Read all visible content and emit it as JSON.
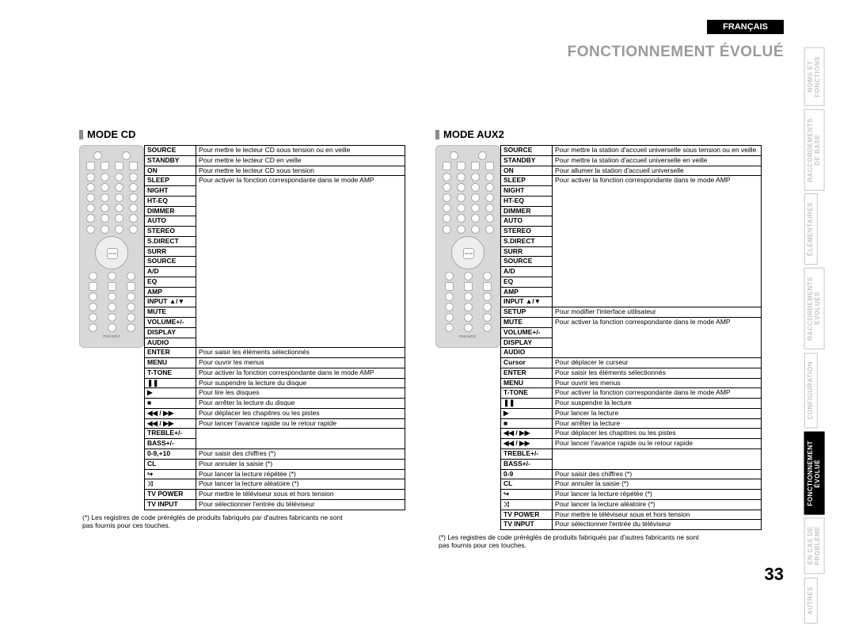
{
  "lang_tab": "FRANÇAIS",
  "breadcrumb": "FONCTIONNEMENT ÉVOLUÉ",
  "page_number": "33",
  "footnote": "(*) Les registres de code préréglés de produits fabriqués par d'autres fabricants ne sont pas fournis pour ces touches.",
  "remote_brand": "marantz",
  "sidetabs": [
    {
      "label": "NOMS ET\nFONCTIONS",
      "active": false
    },
    {
      "label": "RACCORDEMENTS\nDE BASE",
      "active": false
    },
    {
      "label": "ÉLÉMENTAIRES",
      "active": false
    },
    {
      "label": "RACCORDEMENTS\nÉVOLUÉS",
      "active": false
    },
    {
      "label": "CONFIGURATION",
      "active": false
    },
    {
      "label": "FONCTIONNEMENT\nÉVOLUÉ",
      "active": true
    },
    {
      "label": "EN CAS DE\nPROBLÈME",
      "active": false
    },
    {
      "label": "AUTRES",
      "active": false
    }
  ],
  "mode_cd": {
    "title": "MODE CD",
    "rows": [
      {
        "k": "SOURCE",
        "v": "Pour mettre le lecteur CD sous tension ou en veille"
      },
      {
        "k": "STANDBY",
        "v": "Pour mettre le lecteur CD en veille"
      },
      {
        "k": "ON",
        "v": "Pour mettre le lecteur CD sous tension"
      },
      {
        "k": "SLEEP",
        "v": "",
        "group_start": true
      },
      {
        "k": "NIGHT",
        "v": ""
      },
      {
        "k": "HT-EQ",
        "v": ""
      },
      {
        "k": "DIMMER",
        "v": ""
      },
      {
        "k": "AUTO",
        "v": ""
      },
      {
        "k": "STEREO",
        "v": ""
      },
      {
        "k": "S.DIRECT",
        "v": ""
      },
      {
        "k": "SURR",
        "v": ""
      },
      {
        "k": "SOURCE",
        "v": "Pour activer la fonction correspondante dans le mode AMP",
        "group_val": true
      },
      {
        "k": "A/D",
        "v": ""
      },
      {
        "k": "EQ",
        "v": ""
      },
      {
        "k": "AMP",
        "v": ""
      },
      {
        "k": "INPUT ▲/▼",
        "v": ""
      },
      {
        "k": "MUTE",
        "v": ""
      },
      {
        "k": "VOLUME+/-",
        "v": ""
      },
      {
        "k": "DISPLAY",
        "v": ""
      },
      {
        "k": "AUDIO",
        "v": "",
        "group_end": true
      },
      {
        "k": "ENTER",
        "v": "Pour saisir les éléments sélectionnés"
      },
      {
        "k": "MENU",
        "v": "Pour ouvrir les menus"
      },
      {
        "k": "T-TONE",
        "v": "Pour activer la fonction correspondante dans le mode AMP"
      },
      {
        "k": "❚❚",
        "v": "Pour suspendre la lecture du disque"
      },
      {
        "k": "▶",
        "v": "Pour lire les disques"
      },
      {
        "k": "■",
        "v": "Pour arrêter la lecture du disque"
      },
      {
        "k": "◀◀ / ▶▶",
        "v": "Pour déplacer les chapitres ou les pistes"
      },
      {
        "k": "◀◀ / ▶▶",
        "v": "Pour lancer l'avance rapide ou le retour rapide"
      },
      {
        "k": "TREBLE+/-",
        "v": "",
        "group2_start": true
      },
      {
        "k": "BASS+/-",
        "v": "Pour activer la fonction correspondante dans le mode AMP",
        "group2_end": true
      },
      {
        "k": "0-9,+10",
        "v": "Pour saisir des chiffres (*)"
      },
      {
        "k": "CL",
        "v": "Pour annuler la saisie (*)"
      },
      {
        "k": "↪",
        "v": "Pour lancer la lecture répétée (*)"
      },
      {
        "k": "⤨",
        "v": "Pour lancer la lecture aléatoire (*)"
      },
      {
        "k": "TV POWER",
        "v": "Pour mettre le téléviseur sous et hors tension"
      },
      {
        "k": "TV INPUT",
        "v": "Pour sélectionner l'entrée du téléviseur"
      }
    ]
  },
  "mode_aux2": {
    "title": "MODE AUX2",
    "rows": [
      {
        "k": "SOURCE",
        "v": "Pour mettre la station d'accueil universelle sous tension ou en veille"
      },
      {
        "k": "STANDBY",
        "v": "Pour mettre la station d'accueil universelle en veille"
      },
      {
        "k": "ON",
        "v": "Pour allumer la station d'accueil universelle"
      },
      {
        "k": "SLEEP",
        "v": "",
        "group_start": true
      },
      {
        "k": "NIGHT",
        "v": ""
      },
      {
        "k": "HT-EQ",
        "v": ""
      },
      {
        "k": "DIMMER",
        "v": ""
      },
      {
        "k": "AUTO",
        "v": ""
      },
      {
        "k": "STEREO",
        "v": ""
      },
      {
        "k": "S.DIRECT",
        "v": "Pour activer la fonction correspondante dans le mode AMP",
        "group_val": true
      },
      {
        "k": "SURR",
        "v": ""
      },
      {
        "k": "SOURCE",
        "v": ""
      },
      {
        "k": "A/D",
        "v": ""
      },
      {
        "k": "EQ",
        "v": ""
      },
      {
        "k": "AMP",
        "v": ""
      },
      {
        "k": "INPUT ▲/▼",
        "v": "",
        "group_end": true
      },
      {
        "k": "SETUP",
        "v": "Pour modifier l'interface utilisateur"
      },
      {
        "k": "MUTE",
        "v": "",
        "group3_start": true
      },
      {
        "k": "VOLUME+/-",
        "v": "Pour activer la fonction correspondante dans le mode AMP",
        "group3_val": true
      },
      {
        "k": "DISPLAY",
        "v": ""
      },
      {
        "k": "AUDIO",
        "v": "",
        "group3_end": true
      },
      {
        "k": "Cursor",
        "v": "Pour déplacer le curseur"
      },
      {
        "k": "ENTER",
        "v": "Pour saisir les éléments sélectionnés"
      },
      {
        "k": "MENU",
        "v": "Pour ouvrir les menus"
      },
      {
        "k": "T-TONE",
        "v": "Pour activer la fonction correspondante dans le mode AMP"
      },
      {
        "k": "❚❚",
        "v": "Pour suspendre la lecture"
      },
      {
        "k": "▶",
        "v": "Pour lancer la lecture"
      },
      {
        "k": "■",
        "v": "Pour arrêter la lecture"
      },
      {
        "k": "◀◀ / ▶▶",
        "v": "Pour déplacer les chapitres ou les pistes"
      },
      {
        "k": "◀◀ / ▶▶",
        "v": "Pour lancer l'avance rapide ou le retour rapide"
      },
      {
        "k": "TREBLE+/-",
        "v": "",
        "group2_start": true
      },
      {
        "k": "BASS+/-",
        "v": "Pour activer la fonction correspondante dans le mode AMP",
        "group2_end": true
      },
      {
        "k": "0-9",
        "v": "Pour saisir des chiffres (*)"
      },
      {
        "k": "CL",
        "v": "Pour annuler la saisie (*)"
      },
      {
        "k": "↪",
        "v": "Pour lancer la lecture répétée (*)"
      },
      {
        "k": "⤨",
        "v": "Pour lancer la lecture aléatoire (*)"
      },
      {
        "k": "TV POWER",
        "v": "Pour mettre le téléviseur sous et hors tension"
      },
      {
        "k": "TV INPUT",
        "v": "Pour sélectionner l'entrée du téléviseur"
      }
    ]
  }
}
